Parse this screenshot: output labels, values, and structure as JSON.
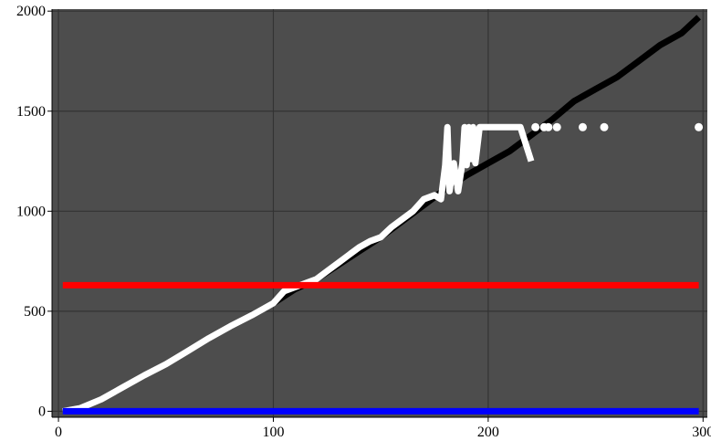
{
  "chart_data": {
    "type": "line",
    "title": "",
    "xlabel": "",
    "ylabel": "",
    "xlim": [
      -3,
      302
    ],
    "ylim": [
      -30,
      2010
    ],
    "xticks": [
      0,
      100,
      200,
      300
    ],
    "yticks": [
      0,
      500,
      1000,
      1500,
      2000
    ],
    "x_tick_labels": [
      "0",
      "100",
      "200",
      "300"
    ],
    "y_tick_labels": [
      "0",
      "500",
      "1000",
      "1500",
      "2000"
    ],
    "grid": true,
    "legend": "none",
    "colors": {
      "background": "#4d4d4d",
      "grid": "#333333",
      "black_series": "#000000",
      "white_series": "#ffffff",
      "red_series": "#ff0000",
      "blue_series": "#0000ff"
    },
    "series": [
      {
        "color": "#000000",
        "style": "line",
        "x": [
          2,
          10,
          20,
          30,
          40,
          50,
          60,
          70,
          80,
          90,
          100,
          110,
          120,
          130,
          140,
          150,
          160,
          170,
          180,
          190,
          200,
          210,
          220,
          230,
          240,
          250,
          260,
          270,
          280,
          290,
          298
        ],
        "values": [
          0,
          15,
          60,
          120,
          180,
          235,
          300,
          365,
          425,
          480,
          540,
          610,
          660,
          730,
          800,
          870,
          950,
          1030,
          1110,
          1180,
          1240,
          1300,
          1380,
          1460,
          1550,
          1610,
          1670,
          1750,
          1830,
          1890,
          1970
        ]
      },
      {
        "color": "#ffffff",
        "style": "line",
        "x": [
          2,
          10,
          20,
          30,
          40,
          50,
          60,
          70,
          80,
          90,
          100,
          105,
          110,
          115,
          120,
          125,
          130,
          135,
          140,
          145,
          150,
          155,
          160,
          165,
          170,
          175,
          178,
          180,
          181,
          182,
          184,
          186,
          188,
          189,
          190,
          191,
          192,
          193,
          194,
          196,
          198,
          200,
          205,
          210,
          215,
          220
        ],
        "values": [
          0,
          15,
          60,
          120,
          180,
          235,
          300,
          365,
          425,
          480,
          540,
          600,
          620,
          640,
          660,
          700,
          740,
          780,
          820,
          850,
          870,
          920,
          960,
          1000,
          1060,
          1080,
          1060,
          1230,
          1420,
          1100,
          1240,
          1100,
          1240,
          1420,
          1230,
          1420,
          1260,
          1420,
          1240,
          1420,
          1420,
          1420,
          1420,
          1420,
          1420,
          1250
        ]
      },
      {
        "color": "#ffffff",
        "style": "markers",
        "x": [
          222,
          226,
          228,
          232,
          244,
          254,
          298
        ],
        "values": [
          1420,
          1420,
          1420,
          1420,
          1420,
          1420,
          1420
        ]
      },
      {
        "color": "#ff0000",
        "style": "line",
        "x": [
          2,
          298
        ],
        "values": [
          630,
          630
        ]
      },
      {
        "color": "#0000ff",
        "style": "line",
        "x": [
          2,
          298
        ],
        "values": [
          0,
          0
        ]
      }
    ]
  }
}
